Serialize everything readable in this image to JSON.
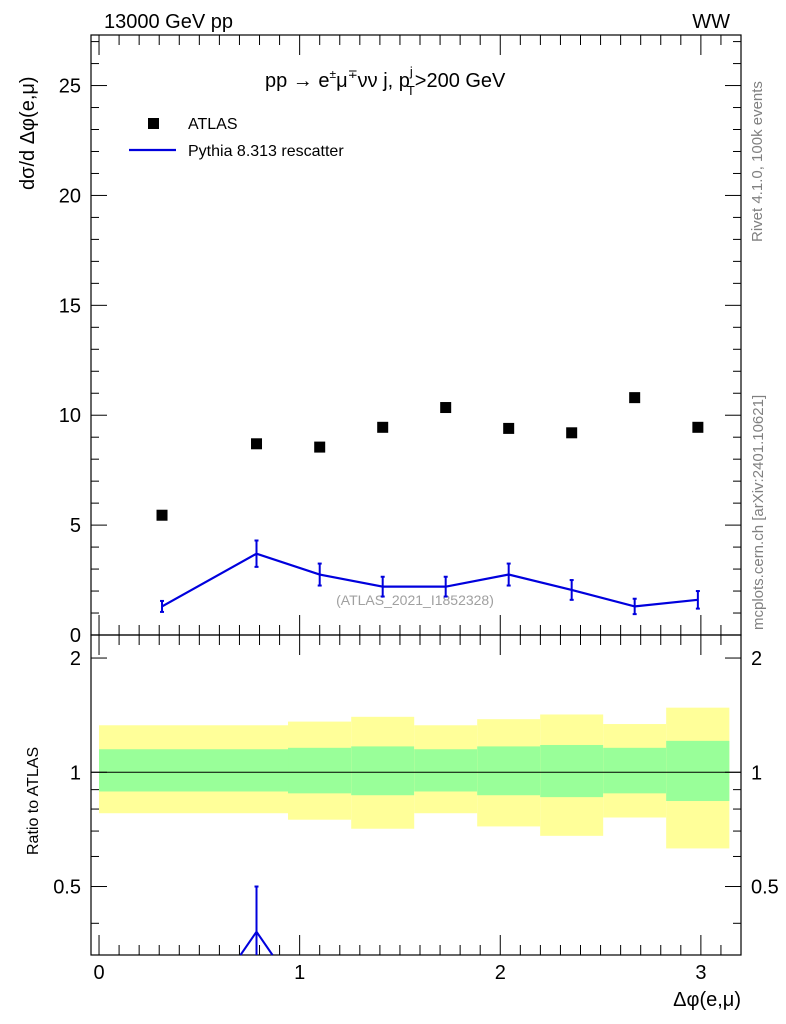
{
  "header": {
    "left": "13000 GeV pp",
    "right": "WW"
  },
  "side": {
    "rivet": "Rivet 4.1.0,  100k events",
    "source": "mcplots.cern.ch [arXiv:2401.10621]"
  },
  "chart_data": [
    {
      "type": "scatter",
      "panel": "main",
      "title": "pp → e±μ∓νν j, pᵀʲ>200 GeV",
      "title_parts": {
        "main": "pp  →  e",
        "s1": "±",
        "mid": "μ",
        "s2": "∓",
        "rest": "νν j, p",
        "sup": "j",
        "sub": "T",
        "tail": ">200 GeV"
      },
      "ylabel": "dσ/d Δφ(e,μ)",
      "ylim": [
        0,
        27.3
      ],
      "xlim": [
        -0.04,
        3.2
      ],
      "yticks": [
        0,
        5,
        10,
        15,
        20,
        25
      ],
      "ytick_labels": [
        "0",
        "5",
        "10",
        "15",
        "20",
        "25"
      ],
      "watermark": "(ATLAS_2021_I1852328)",
      "legend": {
        "placement": "top-left",
        "atlas": "ATLAS",
        "pythia": "Pythia 8.313 rescatter"
      },
      "series": [
        {
          "name": "ATLAS",
          "style": "markers",
          "color": "#000000",
          "x": [
            0.314,
            0.785,
            1.1,
            1.414,
            1.728,
            2.042,
            2.356,
            2.67,
            2.985
          ],
          "y": [
            5.45,
            8.7,
            8.55,
            9.45,
            10.35,
            9.4,
            9.2,
            10.8,
            9.45
          ]
        },
        {
          "name": "Pythia 8.313 rescatter",
          "style": "line",
          "color": "#0000dd",
          "x": [
            0.314,
            0.785,
            1.1,
            1.414,
            1.728,
            2.042,
            2.356,
            2.67,
            2.985
          ],
          "y": [
            1.3,
            3.7,
            2.75,
            2.2,
            2.2,
            2.75,
            2.05,
            1.3,
            1.6
          ],
          "err": [
            0.25,
            0.6,
            0.5,
            0.45,
            0.45,
            0.5,
            0.45,
            0.35,
            0.4
          ]
        }
      ]
    },
    {
      "type": "area",
      "panel": "ratio",
      "ylabel": "Ratio to ATLAS",
      "xlabel": "Δφ(e,μ)",
      "ylim": [
        0.33,
        2.3
      ],
      "xlim": [
        -0.04,
        3.2
      ],
      "yticks": [
        0.5,
        1,
        2
      ],
      "ytick_labels": [
        "0.5",
        "1",
        "2"
      ],
      "xticks": [
        0,
        1,
        2,
        3
      ],
      "xtick_labels": [
        "0",
        "1",
        "2",
        "3"
      ],
      "bins": [
        0,
        0.157,
        0.471,
        0.785,
        1.257,
        1.571,
        1.885,
        2.199,
        2.513,
        2.827,
        3.142
      ],
      "band_edges": [
        0,
        0.942,
        1.257,
        1.571,
        1.885,
        2.199,
        2.513,
        2.827,
        3.142
      ],
      "green_band": {
        "low": [
          0.89,
          0.88,
          0.87,
          0.89,
          0.87,
          0.86,
          0.88,
          0.84
        ],
        "high": [
          1.15,
          1.16,
          1.17,
          1.15,
          1.17,
          1.18,
          1.16,
          1.21
        ]
      },
      "yellow_band": {
        "low": [
          0.78,
          0.75,
          0.71,
          0.78,
          0.72,
          0.68,
          0.76,
          0.63
        ],
        "high": [
          1.33,
          1.36,
          1.4,
          1.33,
          1.38,
          1.42,
          1.34,
          1.48
        ]
      },
      "pythia_point": {
        "x": 0.785,
        "y": 0.38,
        "err_up": 0.12,
        "err_down": 0.1
      }
    }
  ]
}
